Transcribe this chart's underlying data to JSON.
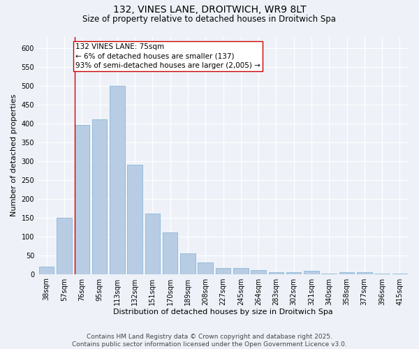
{
  "title_line1": "132, VINES LANE, DROITWICH, WR9 8LT",
  "title_line2": "Size of property relative to detached houses in Droitwich Spa",
  "xlabel": "Distribution of detached houses by size in Droitwich Spa",
  "ylabel": "Number of detached properties",
  "categories": [
    "38sqm",
    "57sqm",
    "76sqm",
    "95sqm",
    "113sqm",
    "132sqm",
    "151sqm",
    "170sqm",
    "189sqm",
    "208sqm",
    "227sqm",
    "245sqm",
    "264sqm",
    "283sqm",
    "302sqm",
    "321sqm",
    "340sqm",
    "358sqm",
    "377sqm",
    "396sqm",
    "415sqm"
  ],
  "values": [
    20,
    150,
    395,
    410,
    500,
    290,
    160,
    110,
    55,
    30,
    16,
    15,
    10,
    5,
    5,
    8,
    1,
    5,
    4,
    1,
    1
  ],
  "bar_color": "#b8cce4",
  "bar_edge_color": "#7bafd4",
  "highlight_line_color": "#cc0000",
  "annotation_text": "132 VINES LANE: 75sqm\n← 6% of detached houses are smaller (137)\n93% of semi-detached houses are larger (2,005) →",
  "annotation_box_color": "#ffffff",
  "annotation_box_edge_color": "#cc0000",
  "ylim": [
    0,
    630
  ],
  "yticks": [
    0,
    50,
    100,
    150,
    200,
    250,
    300,
    350,
    400,
    450,
    500,
    550,
    600
  ],
  "footer_text": "Contains HM Land Registry data © Crown copyright and database right 2025.\nContains public sector information licensed under the Open Government Licence v3.0.",
  "background_color": "#eef2f8",
  "grid_color": "#ffffff",
  "title_fontsize": 10,
  "subtitle_fontsize": 8.5,
  "axis_label_fontsize": 8,
  "tick_fontsize": 7,
  "annotation_fontsize": 7.5,
  "footer_fontsize": 6.5
}
